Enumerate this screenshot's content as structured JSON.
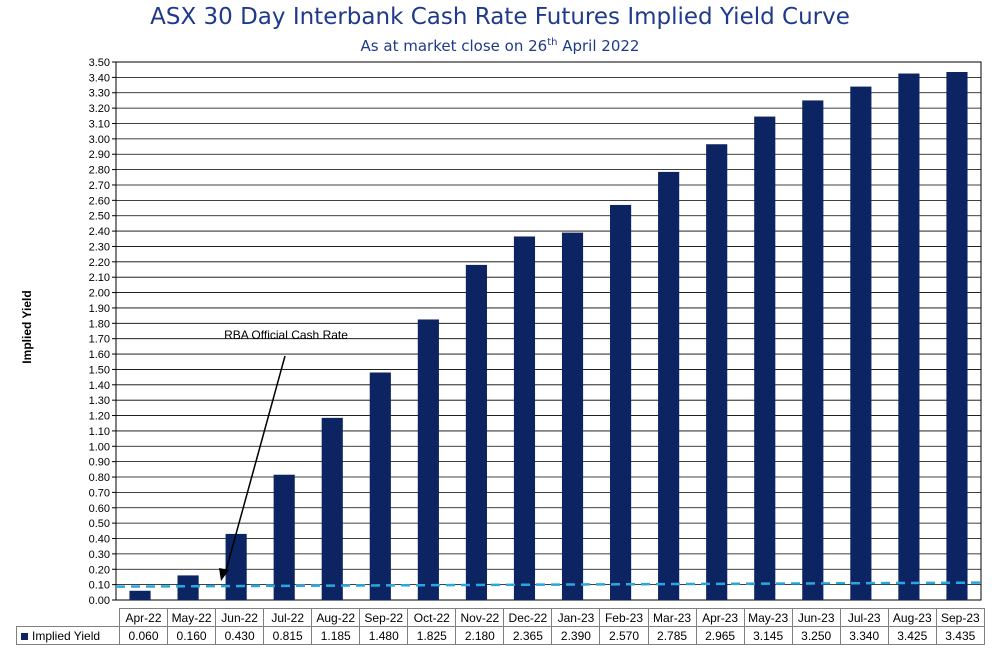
{
  "chart_data": {
    "type": "bar",
    "title": "ASX 30 Day Interbank Cash Rate Futures Implied Yield Curve",
    "subtitle_pre": "As at market close on 26",
    "subtitle_sup": "th",
    "subtitle_post": " April 2022",
    "ylabel": "Implied Yield",
    "xlabel": "",
    "ylim": [
      0,
      3.5
    ],
    "ytick_step": 0.1,
    "grid": true,
    "categories": [
      "Apr-22",
      "May-22",
      "Jun-22",
      "Jul-22",
      "Aug-22",
      "Sep-22",
      "Oct-22",
      "Nov-22",
      "Dec-22",
      "Jan-23",
      "Feb-23",
      "Mar-23",
      "Apr-23",
      "May-23",
      "Jun-23",
      "Jul-23",
      "Aug-23",
      "Sep-23"
    ],
    "series": [
      {
        "name": "Implied Yield",
        "values": [
          0.06,
          0.16,
          0.43,
          0.815,
          1.185,
          1.48,
          1.825,
          2.18,
          2.365,
          2.39,
          2.57,
          2.785,
          2.965,
          3.145,
          3.25,
          3.34,
          3.425,
          3.435
        ],
        "labels": [
          "0.060",
          "0.160",
          "0.430",
          "0.815",
          "1.185",
          "1.480",
          "1.825",
          "2.180",
          "2.365",
          "2.390",
          "2.570",
          "2.785",
          "2.965",
          "3.145",
          "3.250",
          "3.340",
          "3.425",
          "3.435"
        ]
      }
    ],
    "reference_line": {
      "value": 0.1
    },
    "annotation": {
      "text": "RBA Official Cash Rate"
    },
    "colors": {
      "bar": "#0d2462",
      "reference_line": "#29a8e0",
      "title": "#1f3a8a"
    }
  }
}
